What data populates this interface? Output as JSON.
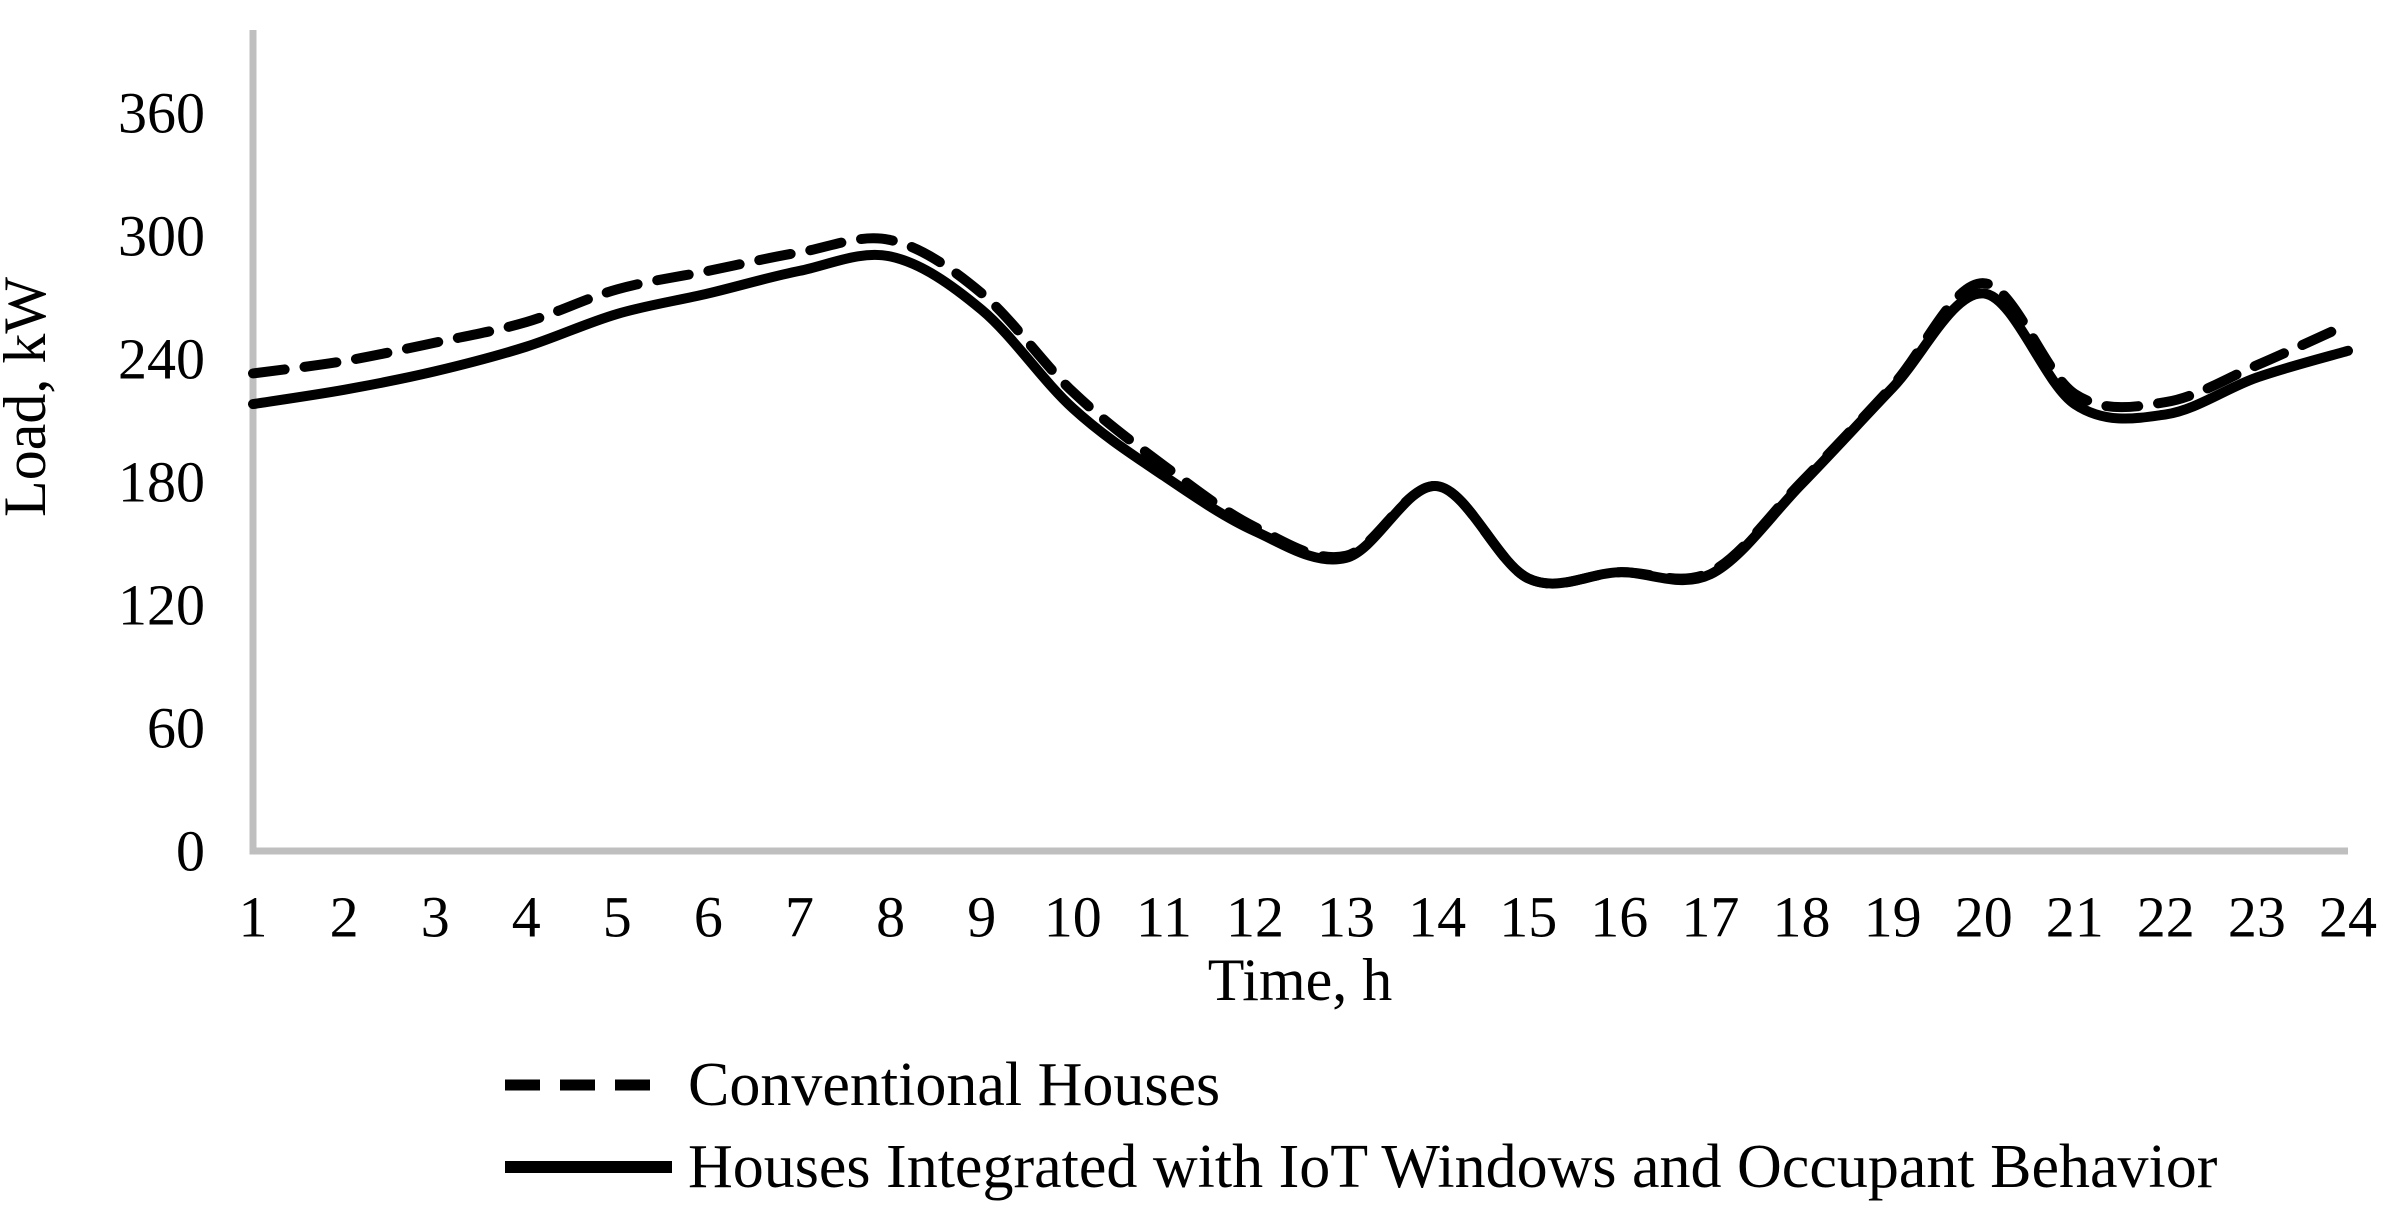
{
  "figure": {
    "background_color": "#FFFFFF",
    "axis_color": "#BFBFBF",
    "series_color": "#000000"
  },
  "chart_data": {
    "type": "line",
    "x": [
      1,
      2,
      3,
      4,
      5,
      6,
      7,
      8,
      9,
      10,
      11,
      12,
      13,
      14,
      15,
      16,
      17,
      18,
      19,
      20,
      21,
      22,
      23,
      24
    ],
    "series": [
      {
        "name": "Conventional Houses",
        "line_style": "dashed",
        "color": "#000000",
        "values": [
          233,
          239,
          248,
          258,
          274,
          283,
          292,
          298,
          272,
          224,
          188,
          158,
          144,
          178,
          133,
          136,
          136,
          180,
          227,
          277,
          223,
          219,
          237,
          257
        ]
      },
      {
        "name": "Houses Integrated with IoT Windows and Occupant Behavior",
        "line_style": "solid",
        "color": "#000000",
        "values": [
          218,
          225,
          234,
          246,
          262,
          272,
          283,
          290,
          264,
          216,
          183,
          156,
          143,
          178,
          133,
          136,
          135,
          179,
          226,
          272,
          218,
          213,
          231,
          244
        ]
      }
    ],
    "title": "",
    "xlabel": "Time, h",
    "ylabel": "Load, kW",
    "xlim": [
      1,
      24
    ],
    "ylim": [
      0,
      400
    ],
    "yticks": [
      0,
      60,
      120,
      180,
      240,
      300,
      360
    ],
    "xticks": [
      1,
      2,
      3,
      4,
      5,
      6,
      7,
      8,
      9,
      10,
      11,
      12,
      13,
      14,
      15,
      16,
      17,
      18,
      19,
      20,
      21,
      22,
      23,
      24
    ],
    "grid": false,
    "legend_position": "bottom-left"
  }
}
